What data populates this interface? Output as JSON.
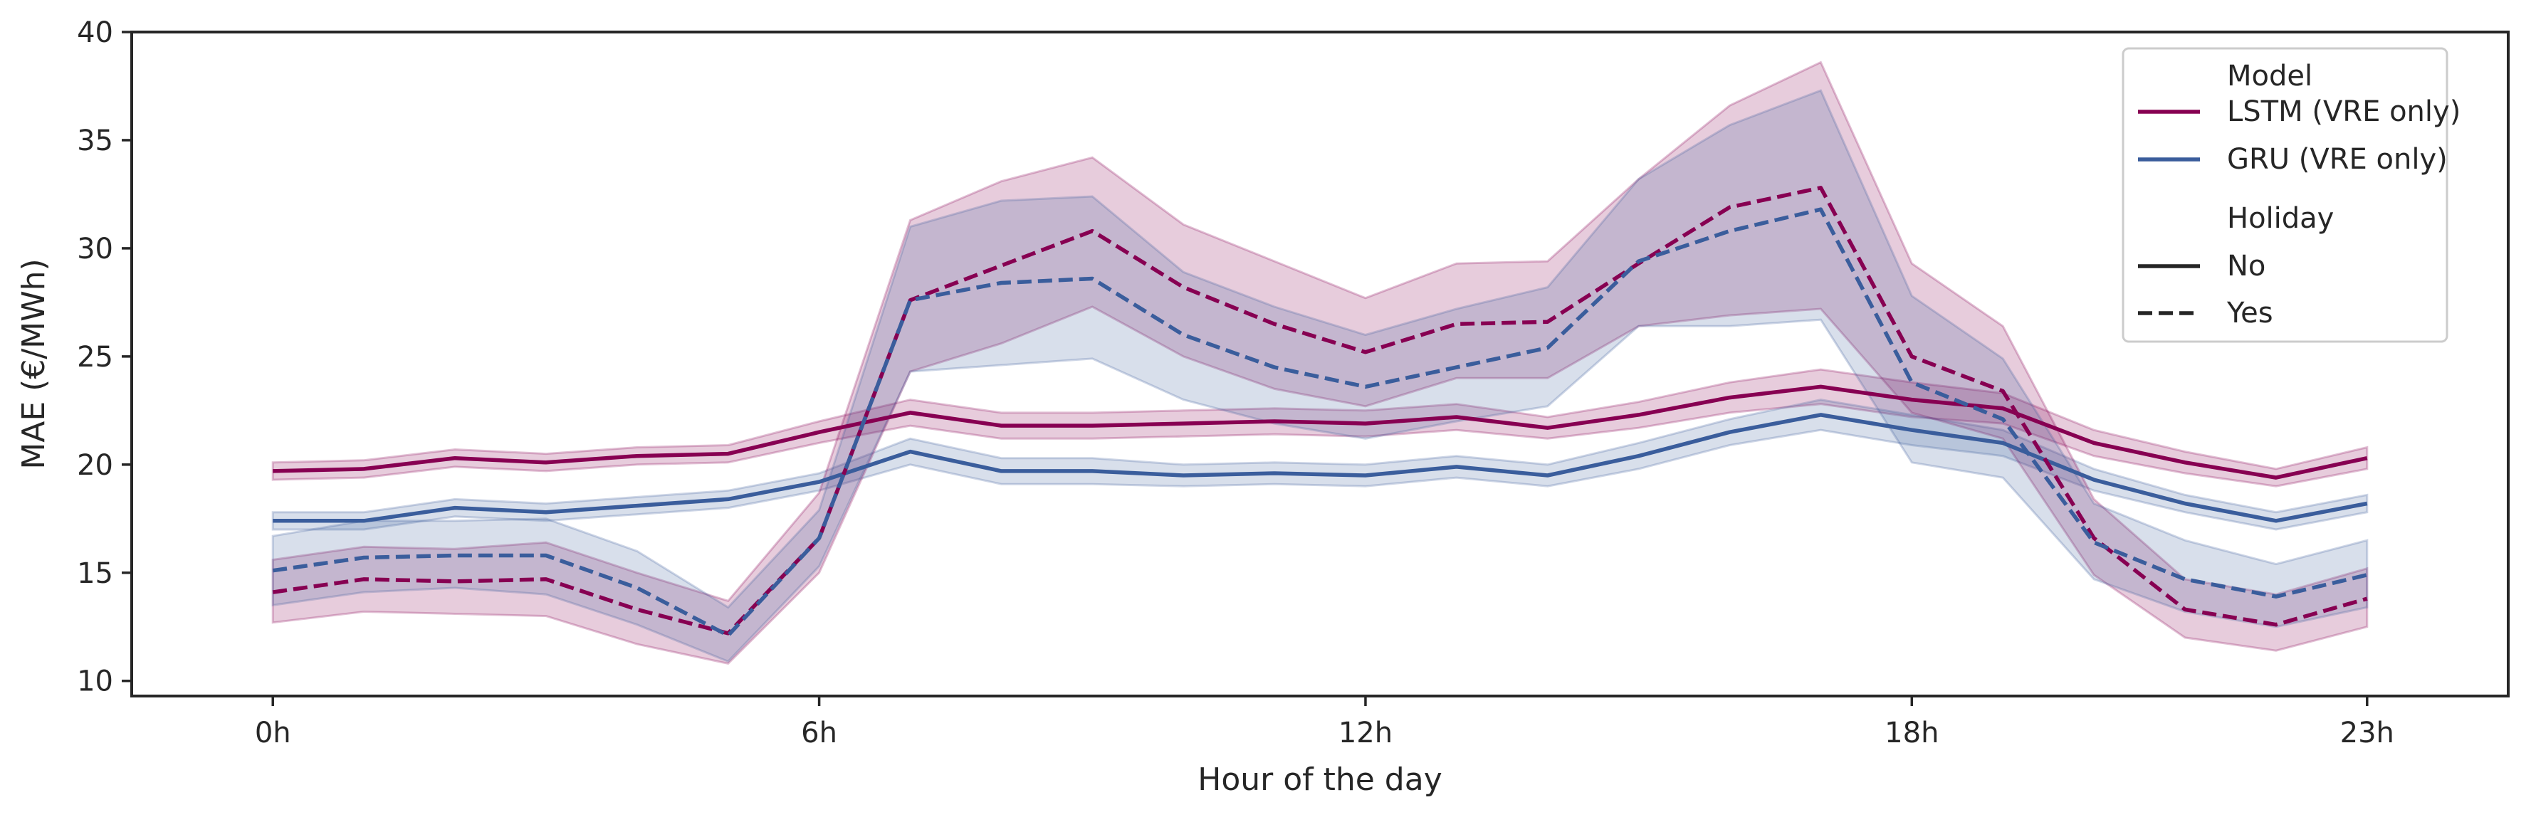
{
  "chart_data": {
    "type": "line",
    "xlabel": "Hour of the day",
    "ylabel": "MAE (€/MWh)",
    "xlim": [
      -1.55,
      24.55
    ],
    "ylim": [
      9.3,
      40
    ],
    "x_ticks": [
      {
        "value": 0,
        "label": "0h"
      },
      {
        "value": 6,
        "label": "6h"
      },
      {
        "value": 12,
        "label": "12h"
      },
      {
        "value": 18,
        "label": "18h"
      },
      {
        "value": 23,
        "label": "23h"
      }
    ],
    "y_ticks": [
      {
        "value": 10,
        "label": "10"
      },
      {
        "value": 15,
        "label": "15"
      },
      {
        "value": 20,
        "label": "20"
      },
      {
        "value": 25,
        "label": "25"
      },
      {
        "value": 30,
        "label": "30"
      },
      {
        "value": 35,
        "label": "35"
      },
      {
        "value": 40,
        "label": "40"
      }
    ],
    "grid": false,
    "legend_position": "top-right",
    "legend": {
      "model_title": "Model",
      "holiday_title": "Holiday",
      "items": [
        {
          "label": "LSTM (VRE only)",
          "color": "#870052",
          "dash": "solid"
        },
        {
          "label": "GRU (VRE only)",
          "color": "#3a5d9c",
          "dash": "solid"
        },
        {
          "label": "No",
          "color": "#262626",
          "dash": "solid"
        },
        {
          "label": "Yes",
          "color": "#262626",
          "dash": "dashed"
        }
      ]
    },
    "x": [
      0,
      1,
      2,
      3,
      4,
      5,
      6,
      7,
      8,
      9,
      10,
      11,
      12,
      13,
      14,
      15,
      16,
      17,
      18,
      19,
      20,
      21,
      22,
      23
    ],
    "series": [
      {
        "name": "LSTM (VRE only)",
        "holiday": "No",
        "color": "#870052",
        "dash": "solid",
        "values": [
          19.7,
          19.8,
          20.3,
          20.1,
          20.4,
          20.5,
          21.5,
          22.4,
          21.8,
          21.8,
          21.9,
          22.0,
          21.9,
          22.2,
          21.7,
          22.3,
          23.1,
          23.6,
          23.0,
          22.6,
          21.0,
          20.1,
          19.4,
          20.3
        ],
        "lower": [
          19.3,
          19.4,
          19.9,
          19.7,
          20.0,
          20.1,
          21.0,
          21.8,
          21.2,
          21.2,
          21.3,
          21.4,
          21.3,
          21.6,
          21.2,
          21.7,
          22.4,
          22.8,
          22.2,
          21.9,
          20.4,
          19.6,
          19.0,
          19.8
        ],
        "upper": [
          20.1,
          20.2,
          20.7,
          20.5,
          20.8,
          20.9,
          22.0,
          23.0,
          22.4,
          22.4,
          22.5,
          22.6,
          22.5,
          22.8,
          22.2,
          22.9,
          23.8,
          24.4,
          23.8,
          23.3,
          21.6,
          20.6,
          19.8,
          20.8
        ]
      },
      {
        "name": "GRU (VRE only)",
        "holiday": "No",
        "color": "#3a5d9c",
        "dash": "solid",
        "values": [
          17.4,
          17.4,
          18.0,
          17.8,
          18.1,
          18.4,
          19.2,
          20.6,
          19.7,
          19.7,
          19.5,
          19.6,
          19.5,
          19.9,
          19.5,
          20.4,
          21.5,
          22.3,
          21.6,
          21.0,
          19.3,
          18.2,
          17.4,
          18.2
        ],
        "lower": [
          17.0,
          17.0,
          17.6,
          17.4,
          17.7,
          18.0,
          18.8,
          20.0,
          19.1,
          19.1,
          19.0,
          19.1,
          19.0,
          19.4,
          19.0,
          19.8,
          20.9,
          21.6,
          20.9,
          20.4,
          18.8,
          17.8,
          17.0,
          17.8
        ],
        "upper": [
          17.8,
          17.8,
          18.4,
          18.2,
          18.5,
          18.8,
          19.6,
          21.2,
          20.3,
          20.3,
          20.0,
          20.1,
          20.0,
          20.4,
          20.0,
          21.0,
          22.1,
          23.0,
          22.3,
          21.6,
          19.8,
          18.6,
          17.8,
          18.6
        ]
      },
      {
        "name": "LSTM (VRE only)",
        "holiday": "Yes",
        "color": "#870052",
        "dash": "dashed",
        "values": [
          14.1,
          14.7,
          14.6,
          14.7,
          13.3,
          12.2,
          16.6,
          27.6,
          29.2,
          30.8,
          28.2,
          26.5,
          25.2,
          26.5,
          26.6,
          29.3,
          31.9,
          32.8,
          25.0,
          23.4,
          16.6,
          13.3,
          12.6,
          13.8
        ],
        "lower": [
          12.7,
          13.2,
          13.1,
          13.0,
          11.7,
          10.8,
          15.0,
          24.3,
          25.6,
          27.3,
          25.0,
          23.5,
          22.7,
          24.0,
          24.0,
          26.4,
          26.9,
          27.2,
          22.4,
          21.2,
          14.9,
          12.0,
          11.4,
          12.5
        ],
        "upper": [
          15.6,
          16.2,
          16.1,
          16.4,
          15.0,
          13.7,
          18.7,
          31.3,
          33.1,
          34.2,
          31.1,
          29.4,
          27.7,
          29.3,
          29.4,
          33.2,
          36.6,
          38.6,
          29.3,
          26.4,
          18.4,
          14.7,
          14.0,
          15.2
        ]
      },
      {
        "name": "GRU (VRE only)",
        "holiday": "Yes",
        "color": "#3a5d9c",
        "dash": "dashed",
        "values": [
          15.1,
          15.7,
          15.8,
          15.8,
          14.3,
          12.1,
          16.6,
          27.6,
          28.4,
          28.6,
          26.0,
          24.5,
          23.6,
          24.5,
          25.4,
          29.4,
          30.8,
          31.8,
          23.8,
          22.1,
          16.4,
          14.7,
          13.9,
          14.9
        ],
        "lower": [
          13.5,
          14.1,
          14.3,
          14.0,
          12.6,
          10.9,
          15.3,
          24.3,
          24.6,
          24.9,
          23.0,
          21.9,
          21.2,
          22.0,
          22.7,
          26.4,
          26.4,
          26.7,
          20.1,
          19.4,
          14.7,
          13.2,
          12.5,
          13.4
        ],
        "upper": [
          16.7,
          17.4,
          17.4,
          17.5,
          16.0,
          13.4,
          17.9,
          31.0,
          32.2,
          32.4,
          28.9,
          27.3,
          26.0,
          27.2,
          28.2,
          33.2,
          35.7,
          37.3,
          27.8,
          24.9,
          18.2,
          16.5,
          15.4,
          16.5
        ]
      }
    ]
  }
}
